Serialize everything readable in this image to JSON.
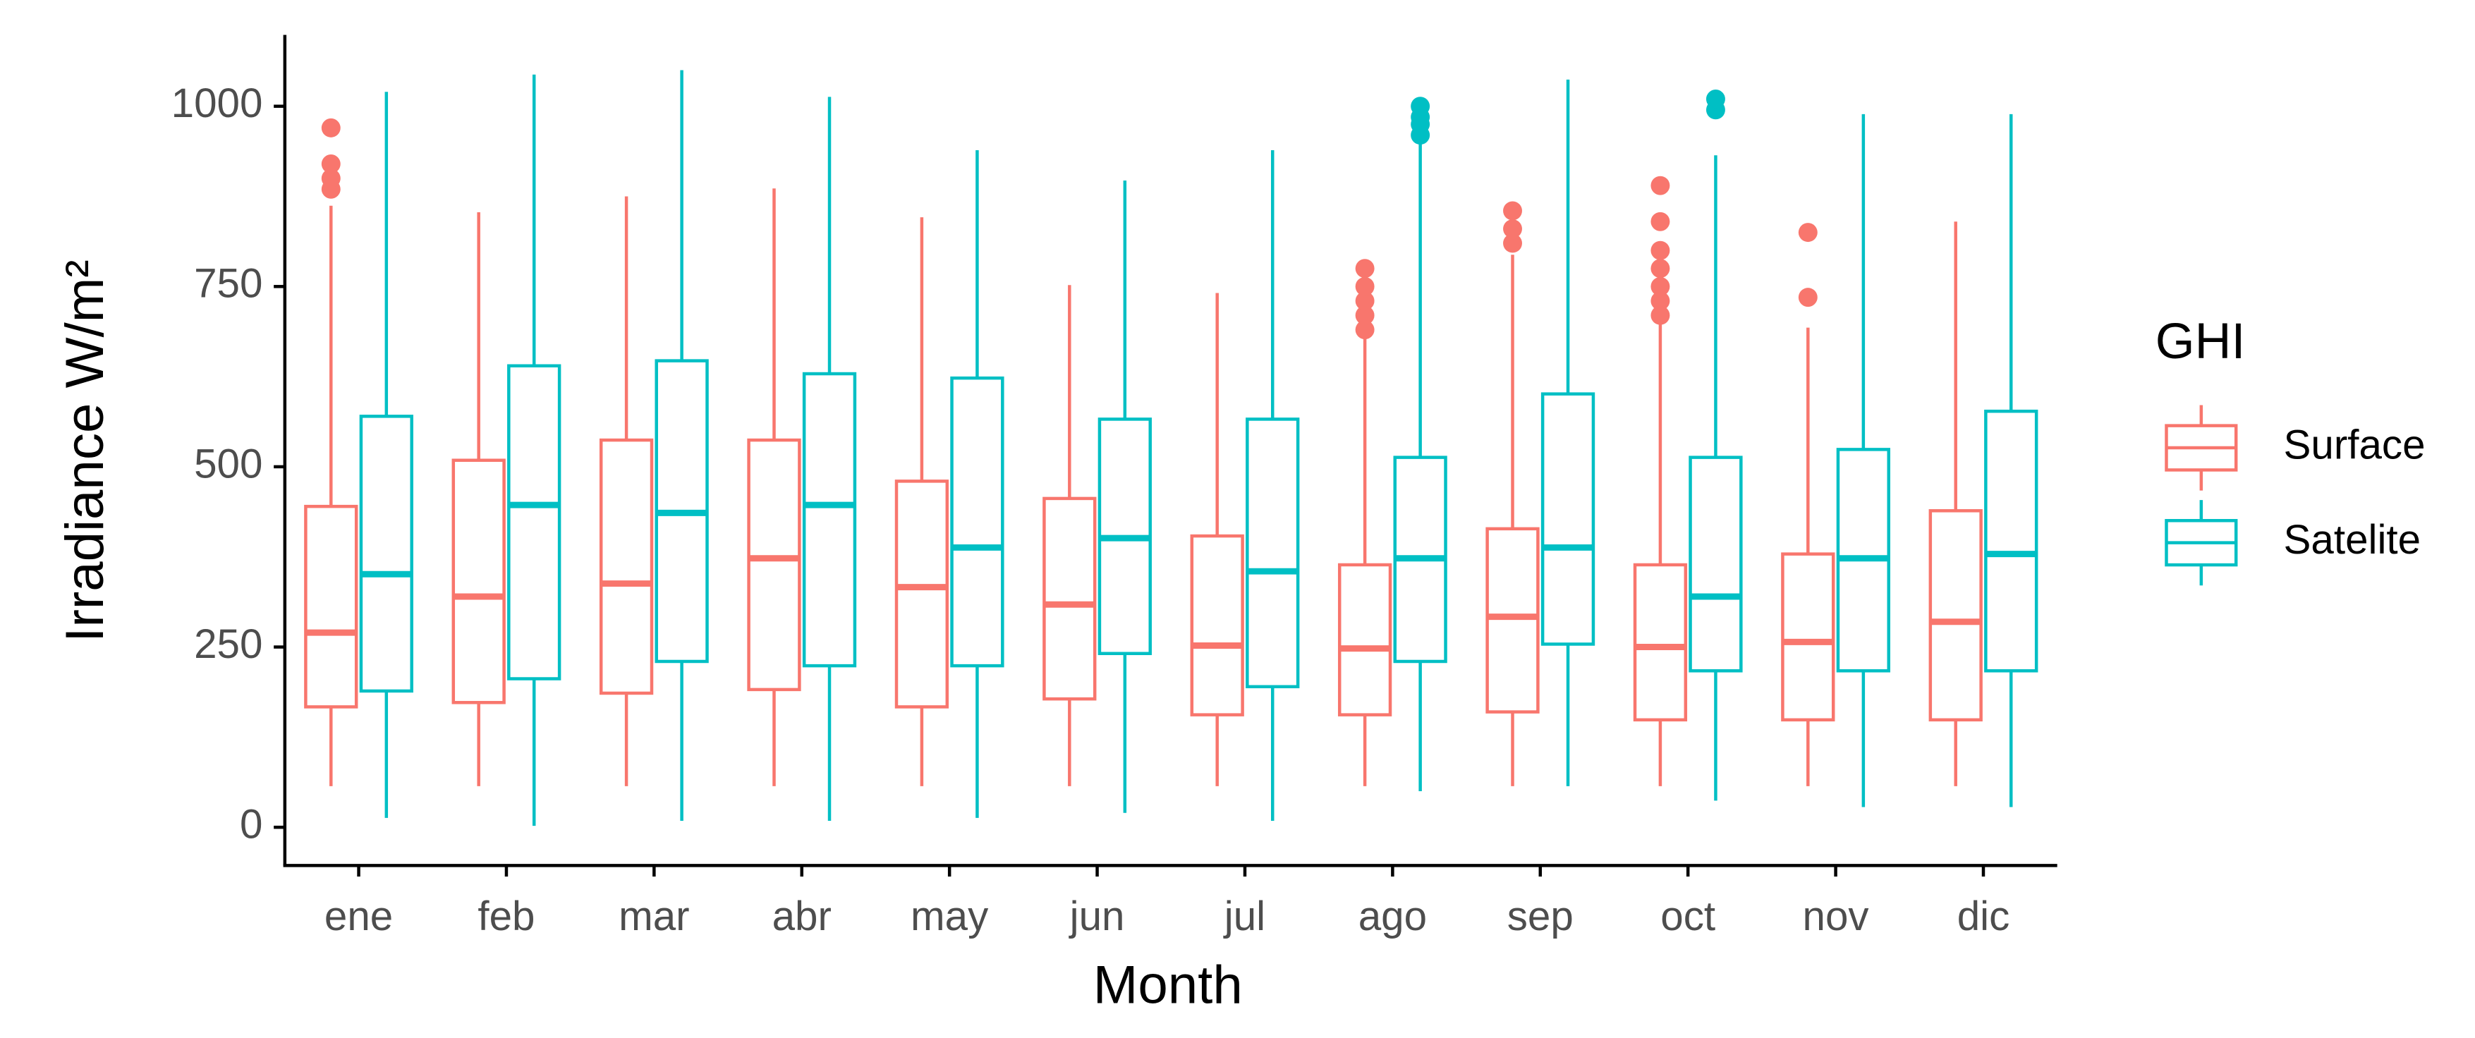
{
  "chart_data": {
    "type": "boxplot",
    "xlabel": "Month",
    "ylabel": "Irradiance W/m²",
    "categories": [
      "ene",
      "feb",
      "mar",
      "abr",
      "may",
      "jun",
      "jul",
      "ago",
      "sep",
      "oct",
      "nov",
      "dic"
    ],
    "ylim": [
      -53,
      1099
    ],
    "yticks": [
      0,
      250,
      500,
      750,
      1000
    ],
    "legend_title": "GHI",
    "series": [
      {
        "name": "Surface",
        "color": "#f8766d",
        "whisker_low": [
          57,
          57,
          57,
          57,
          57,
          57,
          57,
          57,
          57,
          57,
          57,
          57
        ],
        "q1": [
          167,
          173,
          186,
          191,
          167,
          178,
          156,
          156,
          160,
          149,
          149,
          149
        ],
        "median": [
          270,
          320,
          338,
          373,
          333,
          309,
          252,
          248,
          292,
          250,
          257,
          285
        ],
        "q3": [
          445,
          509,
          537,
          537,
          480,
          456,
          404,
          364,
          414,
          364,
          379,
          439
        ],
        "whisker_high": [
          862,
          853,
          875,
          886,
          846,
          752,
          741,
          680,
          794,
          706,
          693,
          840
        ],
        "outliers": [
          [
            885,
            900,
            920,
            970
          ],
          [],
          [],
          [],
          [],
          [],
          [],
          [
            690,
            710,
            730,
            750,
            775
          ],
          [
            810,
            830,
            855
          ],
          [
            710,
            730,
            750,
            775,
            800,
            840,
            890
          ],
          [
            735,
            825
          ],
          []
        ]
      },
      {
        "name": "Satelite",
        "color": "#00bfc4",
        "whisker_low": [
          13,
          2,
          9,
          9,
          13,
          20,
          9,
          50,
          57,
          37,
          28,
          28
        ],
        "q1": [
          189,
          206,
          230,
          224,
          224,
          241,
          195,
          230,
          254,
          217,
          217,
          217
        ],
        "median": [
          351,
          447,
          436,
          447,
          388,
          401,
          355,
          373,
          388,
          320,
          373,
          379
        ],
        "q3": [
          570,
          640,
          647,
          629,
          623,
          566,
          566,
          513,
          601,
          513,
          524,
          577
        ],
        "whisker_high": [
          1020,
          1044,
          1050,
          1013,
          939,
          897,
          939,
          950,
          1037,
          932,
          989,
          989
        ],
        "outliers": [
          [],
          [],
          [],
          [],
          [],
          [],
          [],
          [
            960,
            975,
            985,
            1000
          ],
          [],
          [
            995,
            1010
          ],
          [],
          []
        ]
      }
    ]
  }
}
